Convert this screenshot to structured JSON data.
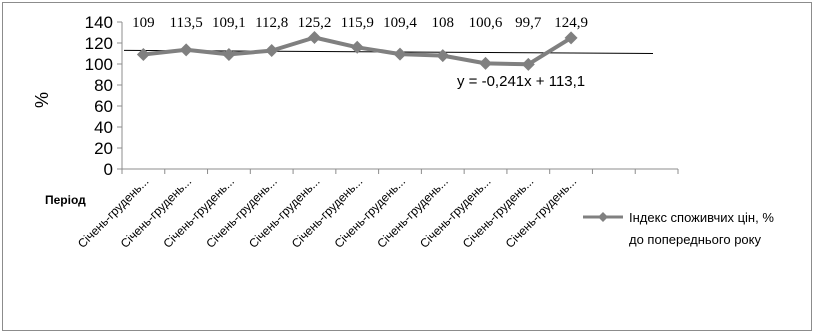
{
  "chart_data": {
    "type": "line",
    "title": "",
    "ylabel": "%",
    "xlabel": "Період",
    "categories": [
      "Січень-грудень...",
      "Січень-грудень...",
      "Січень-грудень...",
      "Січень-грудень...",
      "Січень-грудень...",
      "Січень-грудень...",
      "Січень-грудень...",
      "Січень-грудень...",
      "Січень-грудень...",
      "Січень-грудень...",
      "Січень-грудень..."
    ],
    "series": [
      {
        "name": "Індекс споживчих цін, % до попереднього року",
        "name_lines": [
          "Індекс споживчих цін, %",
          "до попереднього року"
        ],
        "values": [
          109,
          113.5,
          109.1,
          112.8,
          125.2,
          115.9,
          109.4,
          108,
          100.6,
          99.7,
          124.9
        ],
        "labels": [
          "109",
          "113,5",
          "109,1",
          "112,8",
          "125,2",
          "115,9",
          "109,4",
          "108",
          "100,6",
          "99,7",
          "124,9"
        ],
        "color": "#808080"
      }
    ],
    "ylim": [
      0,
      140
    ],
    "yticks": [
      0,
      20,
      40,
      60,
      80,
      100,
      120,
      140
    ],
    "slot_count": 13,
    "trendline": {
      "label": "y = -0,241x + 113,1",
      "slope": -0.241,
      "intercept": 113.1,
      "color": "#000000"
    },
    "legend_position": "right",
    "grid": false
  }
}
